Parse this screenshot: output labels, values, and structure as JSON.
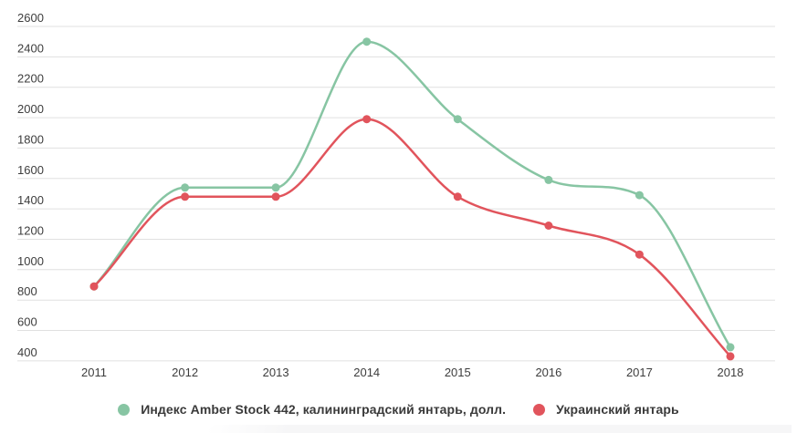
{
  "chart_data": {
    "type": "line",
    "x": [
      "2011",
      "2012",
      "2013",
      "2014",
      "2015",
      "2016",
      "2017",
      "2018"
    ],
    "series": [
      {
        "name": "Индекс Amber Stock 442, калининградский янтарь, долл.",
        "color": "#87c5a3",
        "values": [
          890,
          1540,
          1540,
          2500,
          1990,
          1590,
          1490,
          490
        ]
      },
      {
        "name": "Украинский янтарь",
        "color": "#e1545c",
        "values": [
          890,
          1480,
          1480,
          1990,
          1480,
          1290,
          1100,
          430
        ]
      }
    ],
    "ylim": [
      400,
      2600
    ],
    "yticks": [
      2600,
      2400,
      2200,
      2000,
      1800,
      1600,
      1400,
      1200,
      1000,
      800,
      600,
      400
    ],
    "xlabel": "",
    "ylabel": "",
    "title": "",
    "grid": "horizontal-only",
    "legend_position": "bottom-center",
    "marker": "circle",
    "curve": "smooth-monotone"
  },
  "style": {
    "grid_color": "#e0e0e0",
    "tick_label_color": "#3d3d3d",
    "legend_text_color": "#3a3a3a",
    "background_color": "#ffffff"
  }
}
